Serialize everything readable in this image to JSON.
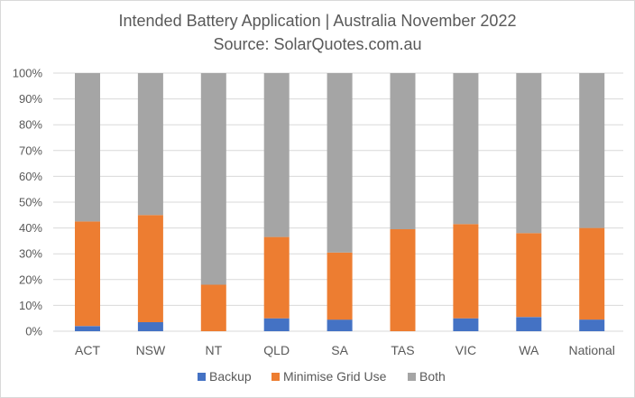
{
  "chart_data": {
    "type": "bar",
    "stacked": true,
    "title": "Intended Battery Application | Australia November 2022",
    "subtitle": "Source: SolarQuotes.com.au",
    "categories": [
      "ACT",
      "NSW",
      "NT",
      "QLD",
      "SA",
      "TAS",
      "VIC",
      "WA",
      "National"
    ],
    "series": [
      {
        "name": "Backup",
        "color": "#4472c4",
        "values": [
          2,
          3.5,
          0,
          5,
          4.5,
          0,
          5,
          5.5,
          4.5
        ]
      },
      {
        "name": "Minimise Grid Use",
        "color": "#ed7d31",
        "values": [
          40.5,
          41.5,
          18,
          31.5,
          26,
          39.5,
          36.5,
          32.5,
          35.5
        ]
      },
      {
        "name": "Both",
        "color": "#a5a5a5",
        "values": [
          57.5,
          55,
          82,
          63.5,
          69.5,
          60.5,
          58.5,
          62,
          60
        ]
      }
    ],
    "yticks": [
      "0%",
      "10%",
      "20%",
      "30%",
      "40%",
      "50%",
      "60%",
      "70%",
      "80%",
      "90%",
      "100%"
    ],
    "ylim": [
      0,
      100
    ],
    "grid": true,
    "legend": "bottom"
  }
}
